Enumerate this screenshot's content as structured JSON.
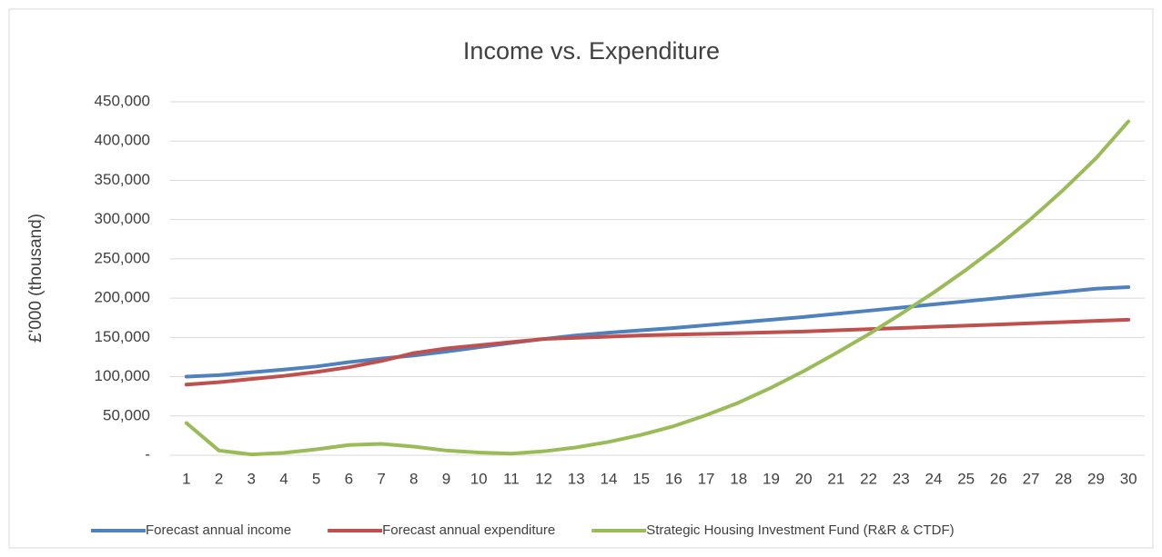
{
  "chart_data": {
    "type": "line",
    "title": "Income vs. Expenditure",
    "y_label": "£'000 (thousand)",
    "categories": [
      "1",
      "2",
      "3",
      "4",
      "5",
      "6",
      "7",
      "8",
      "9",
      "10",
      "11",
      "12",
      "13",
      "14",
      "15",
      "16",
      "17",
      "18",
      "19",
      "20",
      "21",
      "22",
      "23",
      "24",
      "25",
      "26",
      "27",
      "28",
      "29",
      "30"
    ],
    "series": [
      {
        "name": "Forecast annual income",
        "color": "#4f81bd",
        "values": [
          100000,
          102000,
          105500,
          109000,
          113000,
          118500,
          123000,
          127000,
          132000,
          137500,
          143000,
          148000,
          152500,
          156000,
          159000,
          162000,
          165500,
          169000,
          172500,
          176000,
          180000,
          184000,
          188000,
          192000,
          196000,
          200000,
          204000,
          208000,
          212000,
          214000
        ]
      },
      {
        "name": "Forecast annual expenditure",
        "color": "#c0504d",
        "values": [
          90000,
          93000,
          97000,
          101000,
          106000,
          112000,
          120000,
          130000,
          136000,
          140000,
          144000,
          148000,
          149500,
          151000,
          152500,
          153500,
          154500,
          155500,
          156500,
          157500,
          159000,
          160500,
          162000,
          163500,
          165000,
          166500,
          168000,
          169500,
          171000,
          172500
        ]
      },
      {
        "name": "Strategic Housing Investment Fund (R&R & CTDF)",
        "color": "#9bbb59",
        "values": [
          41000,
          6000,
          1000,
          3000,
          7500,
          13000,
          14500,
          11000,
          6000,
          3500,
          2000,
          5000,
          10000,
          17000,
          26000,
          37000,
          51000,
          67000,
          86000,
          107000,
          130000,
          154000,
          180000,
          207000,
          236000,
          267000,
          301000,
          338000,
          378000,
          425000
        ]
      }
    ],
    "ylim": [
      0,
      450000
    ],
    "yticks": [
      {
        "value": 0,
        "label": "-"
      },
      {
        "value": 50000,
        "label": "50,000"
      },
      {
        "value": 100000,
        "label": "100,000"
      },
      {
        "value": 150000,
        "label": "150,000"
      },
      {
        "value": 200000,
        "label": "200,000"
      },
      {
        "value": 250000,
        "label": "250,000"
      },
      {
        "value": 300000,
        "label": "300,000"
      },
      {
        "value": 350000,
        "label": "350,000"
      },
      {
        "value": 400000,
        "label": "400,000"
      },
      {
        "value": 450000,
        "label": "450,000"
      }
    ],
    "grid": true,
    "legend": "bottom"
  }
}
